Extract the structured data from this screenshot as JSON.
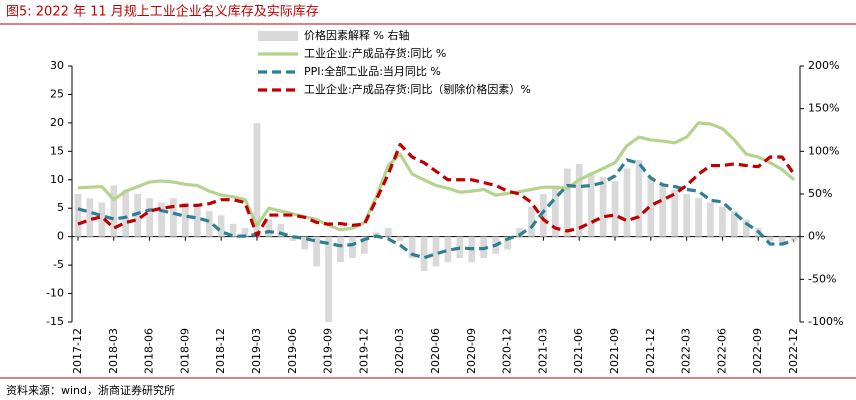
{
  "chart_data": {
    "type": "bar-line",
    "title": "图5:   2022 年 11 月规上工业企业名义库存及实际库存",
    "source": "资料来源：wind，浙商证券研究所",
    "categories": [
      "2017-12",
      null,
      null,
      "2018-03",
      null,
      null,
      "2018-06",
      null,
      null,
      "2018-09",
      null,
      null,
      "2018-12",
      null,
      null,
      "2019-03",
      null,
      null,
      "2019-06",
      null,
      null,
      "2019-09",
      null,
      null,
      "2019-12",
      null,
      null,
      "2020-03",
      null,
      null,
      "2020-06",
      null,
      null,
      "2020-09",
      null,
      null,
      "2020-12",
      null,
      null,
      "2021-03",
      null,
      null,
      "2021-06",
      null,
      null,
      "2021-09",
      null,
      null,
      "2021-12",
      null,
      null,
      "2022-03",
      null,
      null,
      "2022-06",
      null,
      null,
      "2022-09",
      null,
      null,
      "2022-12"
    ],
    "series": [
      {
        "name": "价格因素解释 % 右轴",
        "type": "bar",
        "axis": "y2",
        "color": "#d9d9d9",
        "values": [
          50,
          45,
          40,
          60,
          55,
          50,
          45,
          40,
          45,
          40,
          35,
          30,
          25,
          15,
          10,
          133,
          20,
          15,
          -5,
          -15,
          -35,
          -100,
          -30,
          -25,
          -20,
          5,
          10,
          -5,
          -25,
          -40,
          -35,
          -30,
          -25,
          -30,
          -25,
          -20,
          -15,
          10,
          35,
          50,
          60,
          80,
          85,
          75,
          70,
          65,
          80,
          90,
          70,
          60,
          55,
          50,
          45,
          40,
          35,
          30,
          20,
          10,
          -5,
          -10,
          -5
        ]
      },
      {
        "name": "工业企业:产成品存货:同比 %",
        "type": "line",
        "color": "#b4d48e",
        "values": [
          8.6,
          8.7,
          8.8,
          6.5,
          8.0,
          8.8,
          9.6,
          9.8,
          9.6,
          9.2,
          9.0,
          8.0,
          7.3,
          7.0,
          6.5,
          2.0,
          5.0,
          4.5,
          4.0,
          3.5,
          3.0,
          2.0,
          1.2,
          1.5,
          2.5,
          7.0,
          12.5,
          14.5,
          11.0,
          10.0,
          9.0,
          8.5,
          7.8,
          8.0,
          8.3,
          7.3,
          7.6,
          7.9,
          8.3,
          8.7,
          8.7,
          8.5,
          10.0,
          11.0,
          12.0,
          13.0,
          16.0,
          17.5,
          17.0,
          16.8,
          16.5,
          17.5,
          20.0,
          19.8,
          19.0,
          17.0,
          14.5,
          14.0,
          13.0,
          11.8,
          10.0
        ]
      },
      {
        "name": "PPI:全部工业品:当月同比 %",
        "type": "dash",
        "color": "#2e7f93",
        "values": [
          4.9,
          4.3,
          3.7,
          3.1,
          3.4,
          4.1,
          4.7,
          4.6,
          4.1,
          3.6,
          3.3,
          2.7,
          0.9,
          0.1,
          0.1,
          0.4,
          0.9,
          0.6,
          0.0,
          -0.3,
          -0.8,
          -1.2,
          -1.6,
          -1.4,
          -0.5,
          0.1,
          -0.4,
          -1.5,
          -3.1,
          -3.7,
          -3.0,
          -2.4,
          -2.0,
          -2.1,
          -2.1,
          -1.5,
          -0.4,
          0.3,
          1.7,
          4.4,
          6.8,
          9.0,
          8.8,
          9.0,
          9.5,
          10.7,
          13.5,
          12.9,
          10.3,
          9.1,
          8.8,
          8.3,
          8.0,
          6.4,
          6.1,
          4.2,
          2.3,
          0.9,
          -1.3,
          -1.3,
          -0.7
        ]
      },
      {
        "name": "工业企业:产成品存货:同比（剔除价格因素）%",
        "type": "dash",
        "color": "#c00000",
        "values": [
          2.2,
          3.0,
          3.5,
          1.5,
          2.5,
          3.0,
          4.5,
          5.0,
          5.3,
          5.5,
          5.5,
          5.8,
          6.5,
          6.5,
          6.0,
          0.2,
          3.8,
          3.8,
          3.8,
          3.4,
          2.5,
          2.2,
          2.3,
          2.0,
          2.2,
          6.5,
          11.0,
          16.2,
          14.0,
          13.0,
          11.5,
          10.0,
          10.0,
          10.0,
          9.5,
          9.0,
          8.0,
          7.5,
          6.0,
          3.0,
          1.5,
          1.0,
          1.5,
          2.5,
          3.5,
          3.8,
          2.8,
          3.5,
          5.5,
          6.5,
          7.5,
          9.0,
          11.0,
          12.5,
          12.5,
          12.8,
          12.5,
          12.3,
          14.0,
          14.0,
          11.0
        ]
      }
    ],
    "ylim": [
      -15,
      30
    ],
    "yticks": [
      30,
      25,
      20,
      15,
      10,
      5,
      0,
      -5,
      -10,
      -15
    ],
    "y2lim": [
      -100,
      200
    ],
    "y2ticks": [
      {
        "value": 200,
        "label": "200%"
      },
      {
        "value": 150,
        "label": "150%"
      },
      {
        "value": 100,
        "label": "100%"
      },
      {
        "value": 50,
        "label": "50%"
      },
      {
        "value": 0,
        "label": "0%"
      },
      {
        "value": -50,
        "label": "-50%"
      },
      {
        "value": -100,
        "label": "-100%"
      }
    ]
  }
}
